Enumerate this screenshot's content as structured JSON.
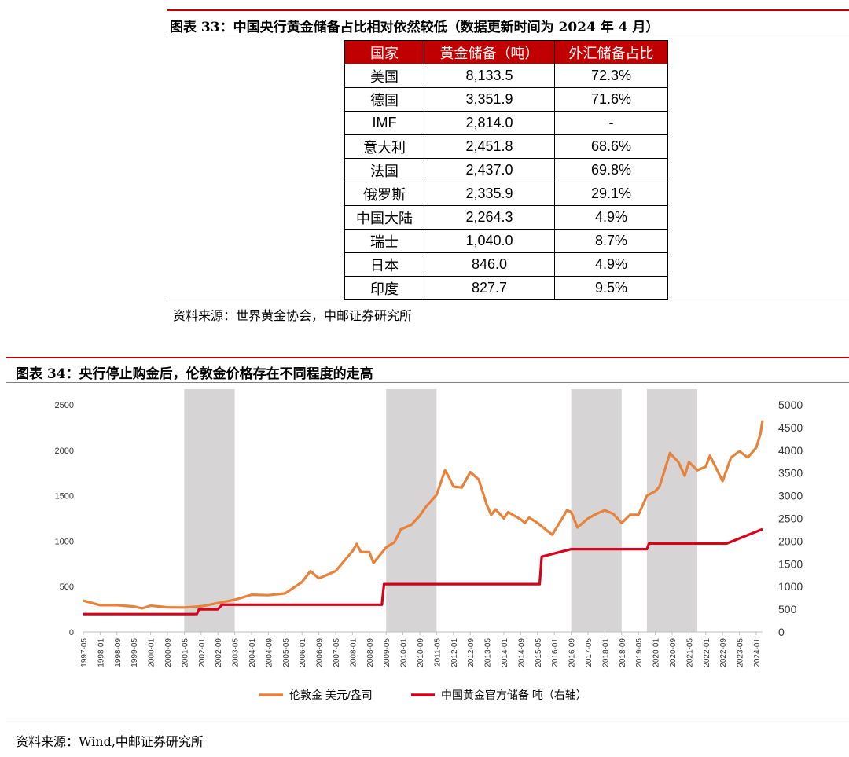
{
  "figure33": {
    "caption": "图表 33：中国央行黄金储备占比相对依然较低（数据更新时间为 2024 年 4 月）",
    "source": "资料来源：世界黄金协会，中邮证券研究所",
    "chart_data": {
      "type": "table",
      "columns": [
        "国家",
        "黄金储备（吨）",
        "外汇储备占比"
      ],
      "rows": [
        [
          "美国",
          "8,133.5",
          "72.3%"
        ],
        [
          "德国",
          "3,351.9",
          "71.6%"
        ],
        [
          "IMF",
          "2,814.0",
          "-"
        ],
        [
          "意大利",
          "2,451.8",
          "68.6%"
        ],
        [
          "法国",
          "2,437.0",
          "69.8%"
        ],
        [
          "俄罗斯",
          "2,335.9",
          "29.1%"
        ],
        [
          "中国大陆",
          "2,264.3",
          "4.9%"
        ],
        [
          "瑞士",
          "1,040.0",
          "8.7%"
        ],
        [
          "日本",
          "846.0",
          "4.9%"
        ],
        [
          "印度",
          "827.7",
          "9.5%"
        ]
      ]
    }
  },
  "figure34": {
    "caption": "图表 34：央行停止购金后，伦敦金价格存在不同程度的走高",
    "source": "资料来源：Wind,中邮证券研究所",
    "colors": {
      "gold": "#e8823a",
      "reserve": "#d9001b",
      "shade": "#d6d4d5"
    },
    "chart_data": {
      "type": "line",
      "x_ticks": [
        "1997-05",
        "1998-01",
        "1998-09",
        "1999-05",
        "2000-01",
        "2000-09",
        "2001-05",
        "2002-01",
        "2002-09",
        "2003-05",
        "2004-01",
        "2004-09",
        "2005-05",
        "2006-01",
        "2006-09",
        "2007-05",
        "2008-01",
        "2008-09",
        "2009-05",
        "2010-01",
        "2010-09",
        "2011-05",
        "2012-01",
        "2012-09",
        "2013-05",
        "2014-01",
        "2014-09",
        "2015-05",
        "2016-01",
        "2016-09",
        "2017-05",
        "2018-01",
        "2018-09",
        "2019-05",
        "2020-01",
        "2020-09",
        "2021-05",
        "2022-01",
        "2022-09",
        "2023-05",
        "2024-01"
      ],
      "y_left": {
        "ticks": [
          0,
          500,
          1000,
          1500,
          2000,
          2500
        ],
        "range": [
          0,
          2500
        ]
      },
      "y_right": {
        "ticks": [
          0,
          500,
          1000,
          1500,
          2000,
          2500,
          3000,
          3500,
          4000,
          4500,
          5000
        ],
        "range": [
          0,
          5000
        ]
      },
      "shaded_periods": [
        [
          "2001-05",
          "2003-05"
        ],
        [
          "2009-05",
          "2011-05"
        ],
        [
          "2016-09",
          "2018-09"
        ],
        [
          "2019-09",
          "2021-09"
        ]
      ],
      "series": [
        {
          "name": "伦敦金 美元/盎司",
          "axis": "left",
          "points": [
            [
              "1997-05",
              345
            ],
            [
              "1998-01",
              295
            ],
            [
              "1998-09",
              295
            ],
            [
              "1999-05",
              280
            ],
            [
              "1999-09",
              260
            ],
            [
              "2000-01",
              290
            ],
            [
              "2000-09",
              272
            ],
            [
              "2001-05",
              270
            ],
            [
              "2002-01",
              282
            ],
            [
              "2002-09",
              318
            ],
            [
              "2003-05",
              355
            ],
            [
              "2004-01",
              410
            ],
            [
              "2004-09",
              405
            ],
            [
              "2005-05",
              425
            ],
            [
              "2006-01",
              550
            ],
            [
              "2006-05",
              670
            ],
            [
              "2006-09",
              590
            ],
            [
              "2007-05",
              670
            ],
            [
              "2008-01",
              890
            ],
            [
              "2008-03",
              970
            ],
            [
              "2008-05",
              880
            ],
            [
              "2008-09",
              880
            ],
            [
              "2008-11",
              760
            ],
            [
              "2009-05",
              930
            ],
            [
              "2009-09",
              990
            ],
            [
              "2009-12",
              1130
            ],
            [
              "2010-05",
              1180
            ],
            [
              "2010-09",
              1280
            ],
            [
              "2010-12",
              1380
            ],
            [
              "2011-05",
              1510
            ],
            [
              "2011-09",
              1780
            ],
            [
              "2011-11",
              1700
            ],
            [
              "2012-01",
              1600
            ],
            [
              "2012-05",
              1590
            ],
            [
              "2012-09",
              1760
            ],
            [
              "2013-01",
              1680
            ],
            [
              "2013-05",
              1390
            ],
            [
              "2013-07",
              1290
            ],
            [
              "2013-09",
              1350
            ],
            [
              "2014-01",
              1250
            ],
            [
              "2014-03",
              1320
            ],
            [
              "2014-09",
              1240
            ],
            [
              "2014-11",
              1200
            ],
            [
              "2015-01",
              1260
            ],
            [
              "2015-05",
              1200
            ],
            [
              "2015-12",
              1070
            ],
            [
              "2016-05",
              1260
            ],
            [
              "2016-07",
              1340
            ],
            [
              "2016-09",
              1320
            ],
            [
              "2016-12",
              1150
            ],
            [
              "2017-05",
              1250
            ],
            [
              "2017-09",
              1300
            ],
            [
              "2018-01",
              1340
            ],
            [
              "2018-05",
              1300
            ],
            [
              "2018-09",
              1200
            ],
            [
              "2019-01",
              1290
            ],
            [
              "2019-05",
              1290
            ],
            [
              "2019-09",
              1500
            ],
            [
              "2020-01",
              1550
            ],
            [
              "2020-03",
              1600
            ],
            [
              "2020-08",
              1970
            ],
            [
              "2020-12",
              1870
            ],
            [
              "2021-03",
              1720
            ],
            [
              "2021-05",
              1870
            ],
            [
              "2021-09",
              1780
            ],
            [
              "2022-01",
              1820
            ],
            [
              "2022-03",
              1940
            ],
            [
              "2022-09",
              1660
            ],
            [
              "2023-01",
              1920
            ],
            [
              "2023-05",
              1990
            ],
            [
              "2023-09",
              1920
            ],
            [
              "2024-01",
              2030
            ],
            [
              "2024-03",
              2180
            ],
            [
              "2024-04",
              2330
            ]
          ]
        },
        {
          "name": "中国黄金官方储备 吨（右轴）",
          "axis": "right",
          "points": [
            [
              "1997-05",
              395
            ],
            [
              "2001-11",
              395
            ],
            [
              "2001-12",
              500
            ],
            [
              "2002-09",
              500
            ],
            [
              "2002-11",
              600
            ],
            [
              "2009-03",
              600
            ],
            [
              "2009-04",
              1054
            ],
            [
              "2015-06",
              1054
            ],
            [
              "2015-07",
              1658
            ],
            [
              "2016-09",
              1823
            ],
            [
              "2019-09",
              1823
            ],
            [
              "2019-10",
              1948
            ],
            [
              "2022-11",
              1948
            ],
            [
              "2024-04",
              2264
            ]
          ]
        }
      ]
    }
  }
}
